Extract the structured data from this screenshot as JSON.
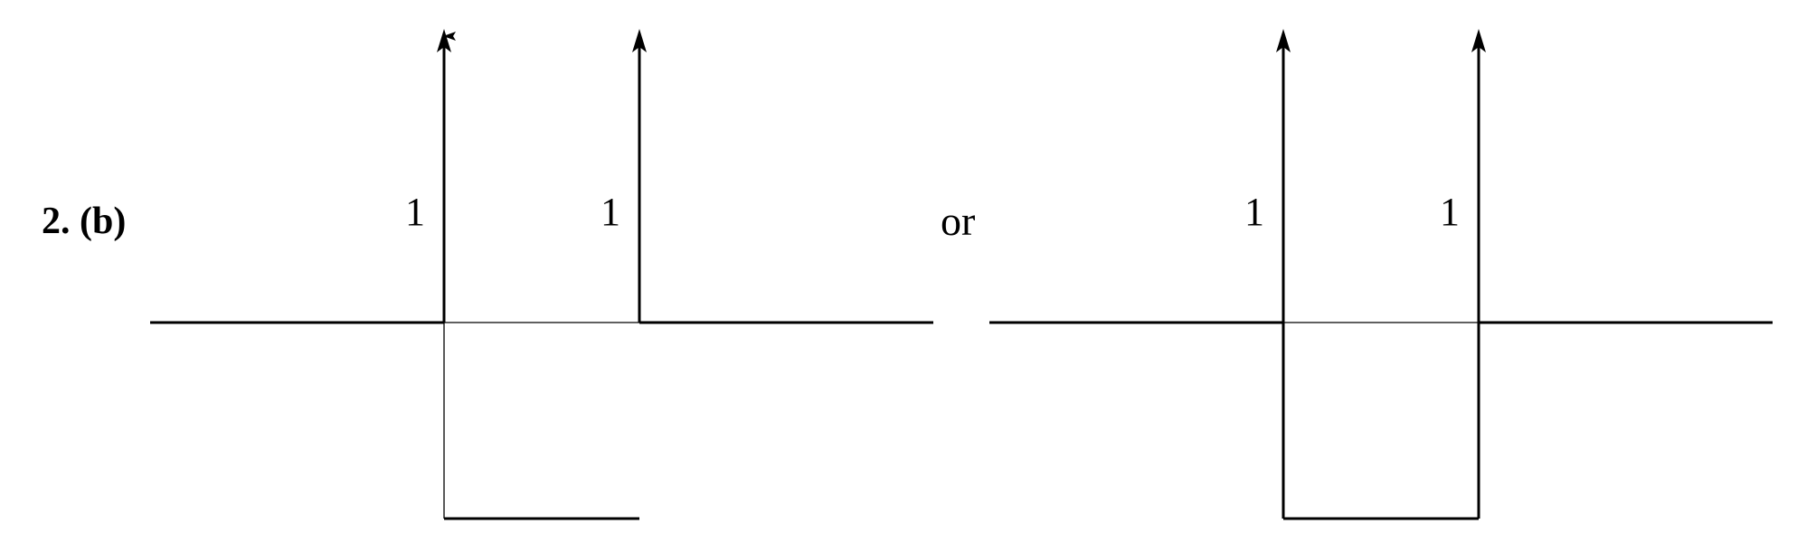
{
  "problem_label": "2. (b)",
  "separator_text": "or",
  "left_figure": {
    "impulses": [
      {
        "label": "1"
      },
      {
        "label": "1"
      }
    ]
  },
  "right_figure": {
    "impulses": [
      {
        "label": "1"
      },
      {
        "label": "1"
      }
    ]
  },
  "colors": {
    "stroke": "#000000",
    "background": "#ffffff"
  }
}
